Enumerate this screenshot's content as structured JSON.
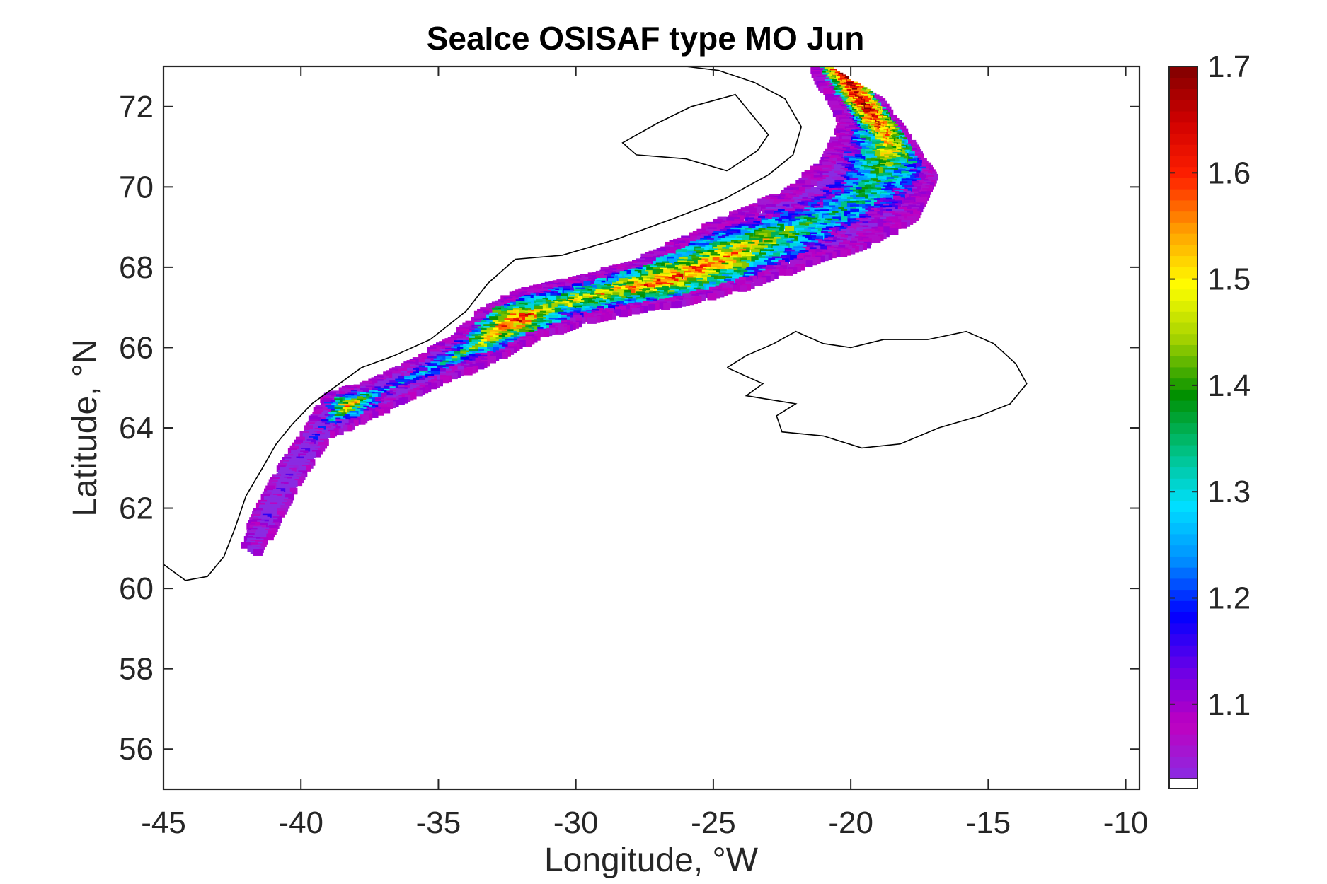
{
  "chart_data": {
    "type": "heatmap",
    "title": "SeaIce OSISAF type MO Jun",
    "xlabel": "Longitude, °W",
    "ylabel": "Latitude, °N",
    "xlim": [
      -45,
      -9.5
    ],
    "ylim": [
      55,
      73
    ],
    "xticks": [
      -45,
      -40,
      -35,
      -30,
      -25,
      -20,
      -15,
      -10
    ],
    "xtick_labels": [
      "-45",
      "-40",
      "-35",
      "-30",
      "-25",
      "-20",
      "-15",
      "-10"
    ],
    "yticks": [
      56,
      58,
      60,
      62,
      64,
      66,
      68,
      70,
      72
    ],
    "ytick_labels": [
      "56",
      "58",
      "60",
      "62",
      "64",
      "66",
      "68",
      "70",
      "72"
    ],
    "colorbar": {
      "range": [
        1.03,
        1.7
      ],
      "ticks": [
        1.1,
        1.2,
        1.3,
        1.4,
        1.5,
        1.6,
        1.7
      ],
      "tick_labels": [
        "1.1",
        "1.2",
        "1.3",
        "1.4",
        "1.5",
        "1.6",
        "1.7"
      ],
      "colormap": [
        "#8a2be2",
        "#c000c0",
        "#6a00e8",
        "#0000ff",
        "#0090ff",
        "#00e0ff",
        "#00c080",
        "#009000",
        "#a0d000",
        "#ffff00",
        "#ffa000",
        "#ff2000",
        "#d00000",
        "#800000"
      ],
      "nan_color": "#ffffff"
    },
    "grid": false,
    "ice_band": [
      {
        "lon": -20.5,
        "lat": 72.8,
        "value": 1.68,
        "spread": 1.3
      },
      {
        "lon": -19.5,
        "lat": 71.8,
        "value": 1.66,
        "spread": 1.4
      },
      {
        "lon": -18.8,
        "lat": 71.0,
        "value": 1.5,
        "spread": 1.5
      },
      {
        "lon": -19.5,
        "lat": 70.0,
        "value": 1.35,
        "spread": 1.5
      },
      {
        "lon": -21.0,
        "lat": 69.3,
        "value": 1.32,
        "spread": 1.4
      },
      {
        "lon": -23.0,
        "lat": 68.8,
        "value": 1.45,
        "spread": 1.3
      },
      {
        "lon": -25.0,
        "lat": 68.2,
        "value": 1.55,
        "spread": 1.2
      },
      {
        "lon": -27.0,
        "lat": 67.7,
        "value": 1.6,
        "spread": 1.0
      },
      {
        "lon": -29.0,
        "lat": 67.4,
        "value": 1.5,
        "spread": 0.9
      },
      {
        "lon": -31.0,
        "lat": 67.1,
        "value": 1.45,
        "spread": 0.9
      },
      {
        "lon": -32.5,
        "lat": 66.7,
        "value": 1.65,
        "spread": 0.8
      },
      {
        "lon": -34.0,
        "lat": 66.0,
        "value": 1.4,
        "spread": 0.6
      },
      {
        "lon": -35.5,
        "lat": 65.5,
        "value": 1.3,
        "spread": 0.5
      },
      {
        "lon": -37.0,
        "lat": 65.0,
        "value": 1.2,
        "spread": 0.5
      },
      {
        "lon": -38.5,
        "lat": 64.6,
        "value": 1.55,
        "spread": 0.6
      },
      {
        "lon": -39.5,
        "lat": 64.0,
        "value": 1.12,
        "spread": 0.3
      },
      {
        "lon": -40.5,
        "lat": 63.0,
        "value": 1.08,
        "spread": 0.3
      },
      {
        "lon": -41.3,
        "lat": 62.0,
        "value": 1.08,
        "spread": 0.3
      },
      {
        "lon": -42.0,
        "lat": 61.0,
        "value": 1.08,
        "spread": 0.2
      }
    ]
  }
}
